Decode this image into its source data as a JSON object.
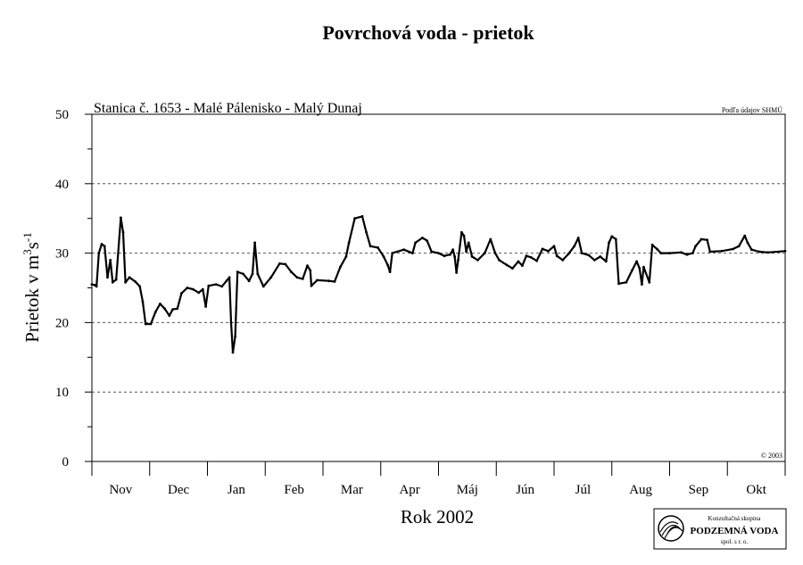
{
  "chart_data": {
    "type": "line",
    "title": "Povrchová voda - prietok",
    "subtitle": "Stanica č. 1653 - Malé Pálenisko - Malý Dunaj",
    "source_note": "Podľa údajov SHMÚ",
    "copyright": "© 2003",
    "xlabel": "Rok 2002",
    "ylabel_main": "Prietok v m",
    "ylabel_sup1": "3",
    "ylabel_mid": "s",
    "ylabel_sup2": "-1",
    "ylim": [
      0,
      50
    ],
    "yticks": [
      0,
      10,
      20,
      30,
      40,
      50
    ],
    "grid": "horizontal dashed at 10, 20, 30, 40",
    "months": [
      "Nov",
      "Dec",
      "Jan",
      "Feb",
      "Mar",
      "Apr",
      "Máj",
      "Jún",
      "Júl",
      "Aug",
      "Sep",
      "Okt"
    ],
    "x_unit": "month index (0 = start of Nov, 12 = end of Okt)",
    "line_color": "#000000",
    "series": [
      {
        "values": [
          [
            0.0,
            25.5
          ],
          [
            0.05,
            25.4
          ],
          [
            0.08,
            25.2
          ],
          [
            0.12,
            30.0
          ],
          [
            0.17,
            31.3
          ],
          [
            0.22,
            31.0
          ],
          [
            0.27,
            26.5
          ],
          [
            0.32,
            29.0
          ],
          [
            0.36,
            25.8
          ],
          [
            0.42,
            26.2
          ],
          [
            0.5,
            35.1
          ],
          [
            0.54,
            33.0
          ],
          [
            0.58,
            25.8
          ],
          [
            0.65,
            26.5
          ],
          [
            0.75,
            25.9
          ],
          [
            0.83,
            25.2
          ],
          [
            0.88,
            23.0
          ],
          [
            0.93,
            19.8
          ],
          [
            1.02,
            19.8
          ],
          [
            1.1,
            21.5
          ],
          [
            1.18,
            22.7
          ],
          [
            1.26,
            22.0
          ],
          [
            1.34,
            21.0
          ],
          [
            1.4,
            21.9
          ],
          [
            1.48,
            22.0
          ],
          [
            1.55,
            24.2
          ],
          [
            1.65,
            25.0
          ],
          [
            1.75,
            24.8
          ],
          [
            1.85,
            24.3
          ],
          [
            1.92,
            24.8
          ],
          [
            1.97,
            22.3
          ],
          [
            2.02,
            25.3
          ],
          [
            2.15,
            25.5
          ],
          [
            2.25,
            25.2
          ],
          [
            2.33,
            26.0
          ],
          [
            2.38,
            26.5
          ],
          [
            2.41,
            20.0
          ],
          [
            2.44,
            15.7
          ],
          [
            2.48,
            18.0
          ],
          [
            2.52,
            27.3
          ],
          [
            2.62,
            27.0
          ],
          [
            2.72,
            26.0
          ],
          [
            2.78,
            27.0
          ],
          [
            2.82,
            31.5
          ],
          [
            2.87,
            27.0
          ],
          [
            2.97,
            25.2
          ],
          [
            3.1,
            26.5
          ],
          [
            3.25,
            28.5
          ],
          [
            3.35,
            28.4
          ],
          [
            3.45,
            27.3
          ],
          [
            3.55,
            26.5
          ],
          [
            3.65,
            26.3
          ],
          [
            3.73,
            28.2
          ],
          [
            3.78,
            27.5
          ],
          [
            3.8,
            25.3
          ],
          [
            3.9,
            26.1
          ],
          [
            4.1,
            26.0
          ],
          [
            4.2,
            25.9
          ],
          [
            4.3,
            28.0
          ],
          [
            4.4,
            29.5
          ],
          [
            4.45,
            31.5
          ],
          [
            4.55,
            35.0
          ],
          [
            4.68,
            35.3
          ],
          [
            4.75,
            33.0
          ],
          [
            4.82,
            31.0
          ],
          [
            4.95,
            30.8
          ],
          [
            5.05,
            29.5
          ],
          [
            5.12,
            28.3
          ],
          [
            5.16,
            27.3
          ],
          [
            5.2,
            30.0
          ],
          [
            5.4,
            30.5
          ],
          [
            5.55,
            30.0
          ],
          [
            5.6,
            31.5
          ],
          [
            5.72,
            32.2
          ],
          [
            5.8,
            31.8
          ],
          [
            5.88,
            30.2
          ],
          [
            6.0,
            30.0
          ],
          [
            6.1,
            29.6
          ],
          [
            6.2,
            29.8
          ],
          [
            6.25,
            30.5
          ],
          [
            6.28,
            29.5
          ],
          [
            6.31,
            27.2
          ],
          [
            6.34,
            29.0
          ],
          [
            6.4,
            33.0
          ],
          [
            6.44,
            32.5
          ],
          [
            6.48,
            30.2
          ],
          [
            6.52,
            31.5
          ],
          [
            6.58,
            29.5
          ],
          [
            6.68,
            29.0
          ],
          [
            6.8,
            30.0
          ],
          [
            6.9,
            32.0
          ],
          [
            6.98,
            30.0
          ],
          [
            7.05,
            29.0
          ],
          [
            7.18,
            28.3
          ],
          [
            7.28,
            27.8
          ],
          [
            7.38,
            28.8
          ],
          [
            7.45,
            28.2
          ],
          [
            7.52,
            29.6
          ],
          [
            7.6,
            29.4
          ],
          [
            7.7,
            28.9
          ],
          [
            7.8,
            30.6
          ],
          [
            7.9,
            30.3
          ],
          [
            8.0,
            31.0
          ],
          [
            8.05,
            29.6
          ],
          [
            8.15,
            29.0
          ],
          [
            8.25,
            29.9
          ],
          [
            8.35,
            31.0
          ],
          [
            8.42,
            32.2
          ],
          [
            8.48,
            30.0
          ],
          [
            8.6,
            29.7
          ],
          [
            8.7,
            29.0
          ],
          [
            8.8,
            29.5
          ],
          [
            8.9,
            28.8
          ],
          [
            8.95,
            31.5
          ],
          [
            9.0,
            32.4
          ],
          [
            9.07,
            32.0
          ],
          [
            9.12,
            25.6
          ],
          [
            9.25,
            25.8
          ],
          [
            9.35,
            27.5
          ],
          [
            9.43,
            28.8
          ],
          [
            9.48,
            27.8
          ],
          [
            9.52,
            25.5
          ],
          [
            9.55,
            28.0
          ],
          [
            9.65,
            25.8
          ],
          [
            9.7,
            31.2
          ],
          [
            9.78,
            30.6
          ],
          [
            9.85,
            30.0
          ],
          [
            10.0,
            30.0
          ],
          [
            10.2,
            30.1
          ],
          [
            10.3,
            29.8
          ],
          [
            10.4,
            30.0
          ],
          [
            10.45,
            31.0
          ],
          [
            10.55,
            32.0
          ],
          [
            10.65,
            31.9
          ],
          [
            10.7,
            30.2
          ],
          [
            10.9,
            30.3
          ],
          [
            11.1,
            30.6
          ],
          [
            11.2,
            31.0
          ],
          [
            11.3,
            32.5
          ],
          [
            11.35,
            31.5
          ],
          [
            11.42,
            30.5
          ],
          [
            11.55,
            30.2
          ],
          [
            11.7,
            30.1
          ],
          [
            12.0,
            30.3
          ]
        ]
      }
    ]
  },
  "logo": {
    "line1": "Konzultačná skupina",
    "line2": "PODZEMNÁ VODA",
    "line3": "spol. s r. o."
  }
}
